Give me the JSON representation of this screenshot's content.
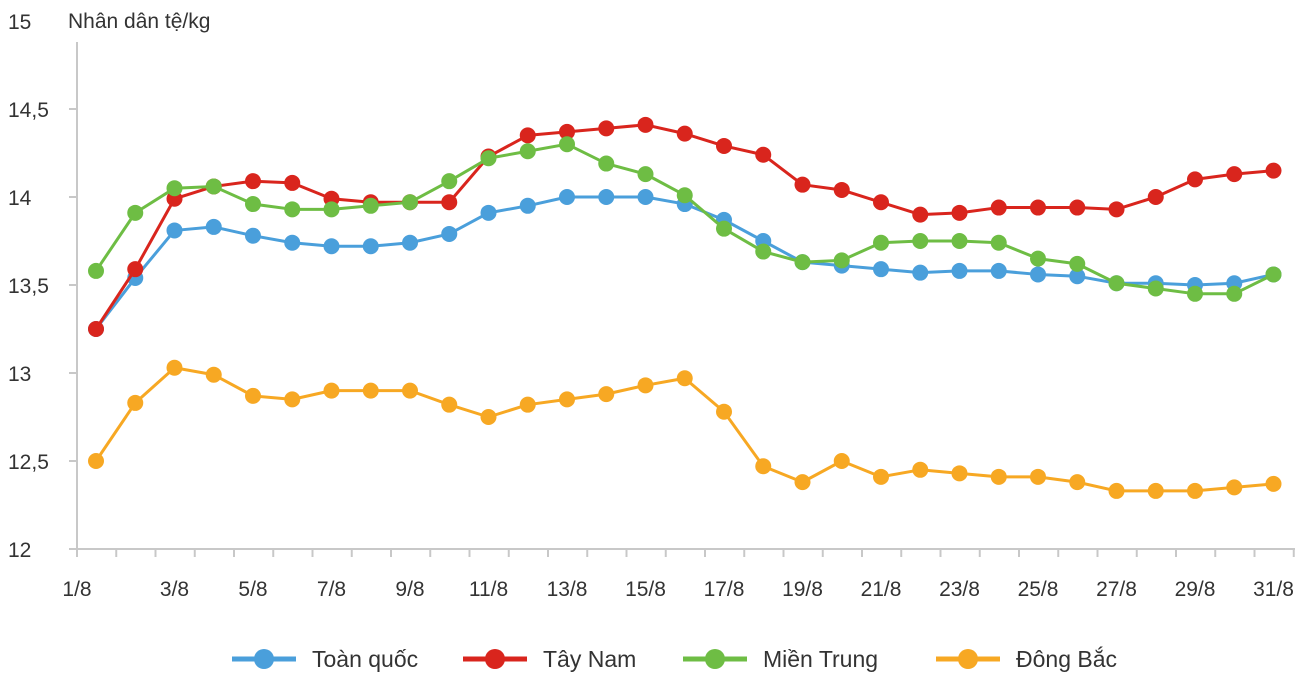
{
  "chart_data": {
    "type": "line",
    "unit_label": "Nhân dân tệ/kg",
    "ylim": [
      12,
      15
    ],
    "y_ticks": [
      "12",
      "12,5",
      "13",
      "13,5",
      "14",
      "14,5",
      "15"
    ],
    "y_tick_values": [
      12,
      12.5,
      13,
      13.5,
      14,
      14.5,
      15
    ],
    "x": [
      "1/8",
      "2/8",
      "3/8",
      "4/8",
      "5/8",
      "6/8",
      "7/8",
      "8/8",
      "9/8",
      "10/8",
      "11/8",
      "12/8",
      "13/8",
      "14/8",
      "15/8",
      "16/8",
      "17/8",
      "18/8",
      "19/8",
      "20/8",
      "21/8",
      "22/8",
      "23/8",
      "24/8",
      "25/8",
      "26/8",
      "27/8",
      "28/8",
      "29/8",
      "30/8",
      "31/8"
    ],
    "x_tick_labels": [
      "1/8",
      "3/8",
      "5/8",
      "7/8",
      "9/8",
      "11/8",
      "13/8",
      "15/8",
      "17/8",
      "19/8",
      "21/8",
      "23/8",
      "25/8",
      "27/8",
      "29/8",
      "31/8"
    ],
    "grid": false,
    "legend_position": "bottom",
    "series": [
      {
        "name": "Toàn quốc",
        "color": "#4a9fdb",
        "values": [
          13.25,
          13.54,
          13.81,
          13.83,
          13.78,
          13.74,
          13.72,
          13.72,
          13.74,
          13.79,
          13.91,
          13.95,
          14.0,
          14.0,
          14.0,
          13.96,
          13.87,
          13.75,
          13.63,
          13.61,
          13.59,
          13.57,
          13.58,
          13.58,
          13.56,
          13.55,
          13.51,
          13.51,
          13.5,
          13.51,
          13.56
        ]
      },
      {
        "name": "Tây Nam",
        "color": "#d9251d",
        "values": [
          13.25,
          13.59,
          13.99,
          14.06,
          14.09,
          14.08,
          13.99,
          13.97,
          13.97,
          13.97,
          14.23,
          14.35,
          14.37,
          14.39,
          14.41,
          14.36,
          14.29,
          14.24,
          14.07,
          14.04,
          13.97,
          13.9,
          13.91,
          13.94,
          13.94,
          13.94,
          13.93,
          14.0,
          14.1,
          14.13,
          14.15
        ]
      },
      {
        "name": "Miền Trung",
        "color": "#6ebd44",
        "values": [
          13.58,
          13.91,
          14.05,
          14.06,
          13.96,
          13.93,
          13.93,
          13.95,
          13.97,
          14.09,
          14.22,
          14.26,
          14.3,
          14.19,
          14.13,
          14.01,
          13.82,
          13.69,
          13.63,
          13.64,
          13.74,
          13.75,
          13.75,
          13.74,
          13.65,
          13.62,
          13.51,
          13.48,
          13.45,
          13.45,
          13.56
        ]
      },
      {
        "name": "Đông Bắc",
        "color": "#f7a823",
        "values": [
          12.5,
          12.83,
          13.03,
          12.99,
          12.87,
          12.85,
          12.9,
          12.9,
          12.9,
          12.82,
          12.75,
          12.82,
          12.85,
          12.88,
          12.93,
          12.97,
          12.78,
          12.47,
          12.38,
          12.5,
          12.41,
          12.45,
          12.43,
          12.41,
          12.41,
          12.38,
          12.33,
          12.33,
          12.33,
          12.35,
          12.37
        ]
      }
    ]
  }
}
